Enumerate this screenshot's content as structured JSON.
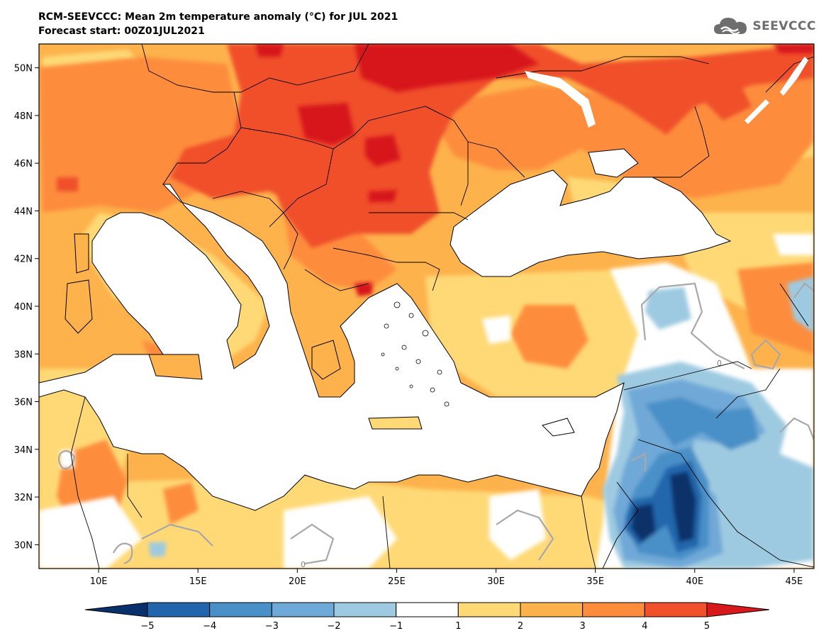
{
  "header": {
    "title_line1": "RCM-SEEVCCC: Mean 2m temperature anomaly (°C) for JUL 2021",
    "title_line2": "Forecast start: 00Z01JUL2021"
  },
  "logo": {
    "text": "SEEVCCC",
    "icon": "cloud-icon",
    "color": "#6e6e6e"
  },
  "map": {
    "lon_range": [
      7,
      46
    ],
    "lat_range": [
      29,
      51
    ],
    "lat_ticks": [
      "50N",
      "48N",
      "46N",
      "44N",
      "42N",
      "40N",
      "38N",
      "36N",
      "34N",
      "32N",
      "30N"
    ],
    "lat_values": [
      50,
      48,
      46,
      44,
      42,
      40,
      38,
      36,
      34,
      32,
      30
    ],
    "lon_ticks": [
      "10E",
      "15E",
      "20E",
      "25E",
      "30E",
      "35E",
      "40E",
      "45E"
    ],
    "lon_values": [
      10,
      15,
      20,
      25,
      30,
      35,
      40,
      45
    ],
    "contour_label": "0"
  },
  "colorbar": {
    "labels": [
      "−5",
      "−4",
      "−3",
      "−2",
      "−1",
      "1",
      "2",
      "3",
      "4",
      "5"
    ],
    "colors": [
      "#08306b",
      "#2166ac",
      "#4a90c8",
      "#6fa9d8",
      "#9ecae1",
      "#ffffff",
      "#fed976",
      "#fdb24c",
      "#fd8d3c",
      "#f0502a",
      "#d7191c"
    ]
  }
}
